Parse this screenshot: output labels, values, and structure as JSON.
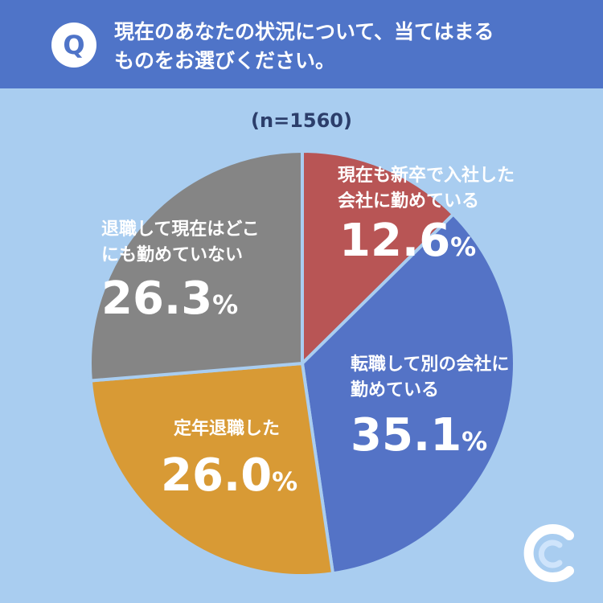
{
  "header": {
    "badge": "Q",
    "question_line1": "現在のあなたの状況について、当てはまる",
    "question_line2": "ものをお選びください。"
  },
  "sample_label": "(n=1560)",
  "colors": {
    "background": "#a9cdf0",
    "header": "#4f74c8"
  },
  "chart_data": {
    "type": "pie",
    "n": 1560,
    "slices": [
      {
        "label_lines": [
          "現在も新卒で入社した",
          "会社に勤めている"
        ],
        "value": 12.6,
        "value_text": "12.6",
        "color": "#b85555"
      },
      {
        "label_lines": [
          "転職して別の会社に",
          "勤めている"
        ],
        "value": 35.1,
        "value_text": "35.1",
        "color": "#5473c6"
      },
      {
        "label_lines": [
          "定年退職した"
        ],
        "value": 26.0,
        "value_text": "26.0",
        "color": "#d89a35"
      },
      {
        "label_lines": [
          "退職して現在はどこ",
          "にも勤めていない"
        ],
        "value": 26.3,
        "value_text": "26.3",
        "color": "#858585"
      }
    ],
    "unit": "%"
  }
}
